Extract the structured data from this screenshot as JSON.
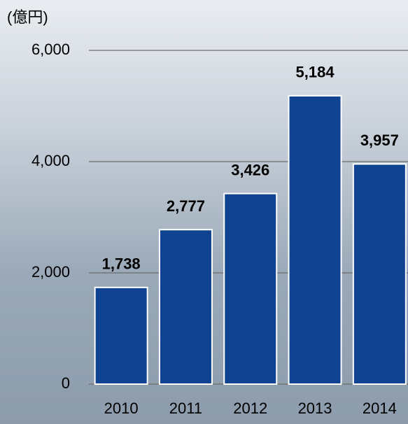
{
  "chart_data": {
    "type": "bar",
    "y_axis_unit": "(億円)",
    "categories": [
      "2010",
      "2011",
      "2012",
      "2013",
      "2014"
    ],
    "values": [
      1738,
      2777,
      3426,
      5184,
      3957
    ],
    "value_labels": [
      "1,738",
      "2,777",
      "3,426",
      "5,184",
      "3,957"
    ],
    "color": "#0f4291",
    "ylim": [
      0,
      6000
    ],
    "yticks": [
      0,
      {
        "value": 2000,
        "label": "2,000"
      },
      {
        "value": 4000,
        "label": "4,000"
      },
      {
        "value": 6000,
        "label": "6,000"
      }
    ],
    "grid": true
  }
}
